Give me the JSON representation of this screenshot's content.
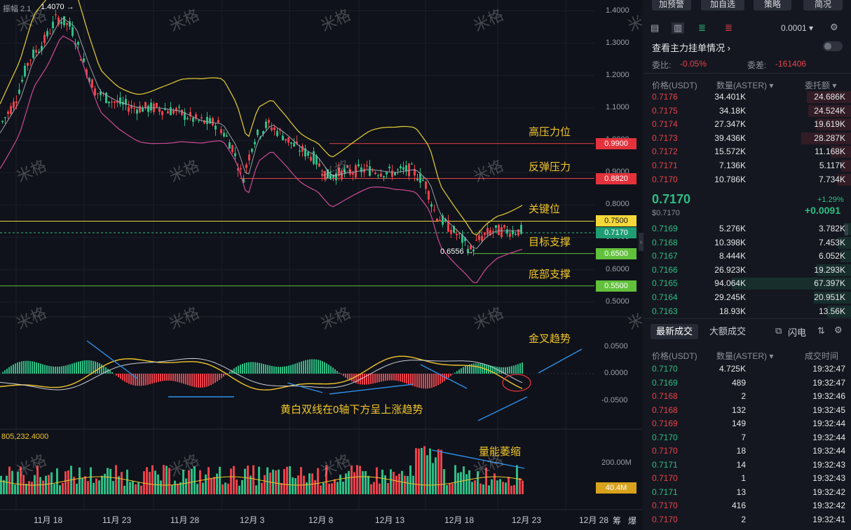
{
  "chart": {
    "header_text": "振幅 2.1",
    "high_marker": "1.4070",
    "low_marker": "0.6556",
    "price_ticks": [
      "1.4000",
      "1.3000",
      "1.2000",
      "1.1000",
      "1.0000",
      "0.9000",
      "0.8000",
      "0.7000",
      "0.6000",
      "0.5000"
    ],
    "levels": [
      {
        "label": "高压力位",
        "value": "0.9900",
        "price": 0.99,
        "line_color": "#e3434b",
        "tag_bg": "#e3323c",
        "tag_fg": "#ffffff"
      },
      {
        "label": "反弹压力",
        "value": "0.8820",
        "price": 0.882,
        "line_color": "#e3434b",
        "tag_bg": "#e3323c",
        "tag_fg": "#ffffff"
      },
      {
        "label": "关键位",
        "value": "0.7500",
        "price": 0.75,
        "line_color": "#e6d341",
        "tag_bg": "#f4d83a",
        "tag_fg": "#1a1a1a"
      },
      {
        "label": "目标支撑",
        "value": "0.6500",
        "price": 0.65,
        "line_color": "#5bbf3a",
        "tag_bg": "#62c13c",
        "tag_fg": "#ffffff"
      },
      {
        "label": "底部支撑",
        "value": "0.5500",
        "price": 0.55,
        "line_color": "#5bbf3a",
        "tag_bg": "#62c13c",
        "tag_fg": "#ffffff"
      }
    ],
    "current_price_tag": "0.7170",
    "macd_ticks": [
      "0.0500",
      "0.0000",
      "-0.0500"
    ],
    "macd_annotation": "黄白双线在0轴下方呈上涨趋势",
    "golden_cross_label": "金叉趋势",
    "volume_header": "805,232.4000",
    "volume_label": "量能萎缩",
    "volume_tick": "200.00M",
    "volume_tag": "40.4M",
    "date_labels": [
      "11月 18",
      "11月 23",
      "11月 28",
      "12月 3",
      "12月 8",
      "12月 13",
      "12月 18",
      "12月 23",
      "12月 28"
    ],
    "corner_labels": [
      "筹",
      "爆"
    ],
    "watermark": "米格"
  },
  "toolbar": {
    "buttons": [
      "加预警",
      "加自选",
      "策略",
      "简况"
    ]
  },
  "orderbook": {
    "precision": "0.0001",
    "view_title": "查看主力挂单情况",
    "ratio_label": "委比:",
    "ratio_value": "-0.05%",
    "diff_label": "委差:",
    "diff_value": "-161406",
    "columns": [
      "价格(USDT)",
      "数量(ASTER)",
      "委托额"
    ],
    "asks": [
      {
        "price": "0.7176",
        "qty": "34.401K",
        "amount": "24.686K",
        "depth": 0.37
      },
      {
        "price": "0.7175",
        "qty": "34.18K",
        "amount": "24.524K",
        "depth": 0.36
      },
      {
        "price": "0.7174",
        "qty": "27.347K",
        "amount": "19.619K",
        "depth": 0.29
      },
      {
        "price": "0.7173",
        "qty": "39.436K",
        "amount": "28.287K",
        "depth": 0.42
      },
      {
        "price": "0.7172",
        "qty": "15.572K",
        "amount": "11.168K",
        "depth": 0.17
      },
      {
        "price": "0.7171",
        "qty": "7.136K",
        "amount": "5.117K",
        "depth": 0.08
      },
      {
        "price": "0.7170",
        "qty": "10.786K",
        "amount": "7.734K",
        "depth": 0.12
      }
    ],
    "last_price": "0.7170",
    "last_price_usd": "$0.7170",
    "change_pct": "+1.29%",
    "change_abs": "+0.0091",
    "bids": [
      {
        "price": "0.7169",
        "qty": "5.276K",
        "amount": "3.782K",
        "depth": 0.06
      },
      {
        "price": "0.7168",
        "qty": "10.398K",
        "amount": "7.453K",
        "depth": 0.11
      },
      {
        "price": "0.7167",
        "qty": "8.444K",
        "amount": "6.052K",
        "depth": 0.09
      },
      {
        "price": "0.7166",
        "qty": "26.923K",
        "amount": "19.293K",
        "depth": 0.29
      },
      {
        "price": "0.7165",
        "qty": "94.064K",
        "amount": "67.397K",
        "depth": 1.0
      },
      {
        "price": "0.7164",
        "qty": "29.245K",
        "amount": "20.951K",
        "depth": 0.31
      },
      {
        "price": "0.7163",
        "qty": "18.93K",
        "amount": "13.56K",
        "depth": 0.2
      }
    ]
  },
  "trades": {
    "tabs": [
      "最新成交",
      "大额成交"
    ],
    "quick_label": "闪电",
    "columns": [
      "价格(USDT)",
      "数量(ASTER)",
      "成交时间"
    ],
    "rows": [
      {
        "price": "0.7170",
        "qty": "4.725K",
        "time": "19:32:47",
        "side": "buy"
      },
      {
        "price": "0.7169",
        "qty": "489",
        "time": "19:32:47",
        "side": "buy"
      },
      {
        "price": "0.7168",
        "qty": "2",
        "time": "19:32:46",
        "side": "sell"
      },
      {
        "price": "0.7168",
        "qty": "132",
        "time": "19:32:45",
        "side": "sell"
      },
      {
        "price": "0.7169",
        "qty": "149",
        "time": "19:32:44",
        "side": "sell"
      },
      {
        "price": "0.7170",
        "qty": "7",
        "time": "19:32:44",
        "side": "buy"
      },
      {
        "price": "0.7170",
        "qty": "18",
        "time": "19:32:44",
        "side": "sell"
      },
      {
        "price": "0.7171",
        "qty": "14",
        "time": "19:32:43",
        "side": "buy"
      },
      {
        "price": "0.7170",
        "qty": "1",
        "time": "19:32:43",
        "side": "sell"
      },
      {
        "price": "0.7171",
        "qty": "13",
        "time": "19:32:42",
        "side": "buy"
      },
      {
        "price": "0.7170",
        "qty": "416",
        "time": "19:32:42",
        "side": "sell"
      },
      {
        "price": "0.7170",
        "qty": "2",
        "time": "19:32:41",
        "side": "sell"
      }
    ]
  },
  "colors": {
    "up": "#2ebd85",
    "down": "#e9424b",
    "accent": "#f0c52c"
  }
}
